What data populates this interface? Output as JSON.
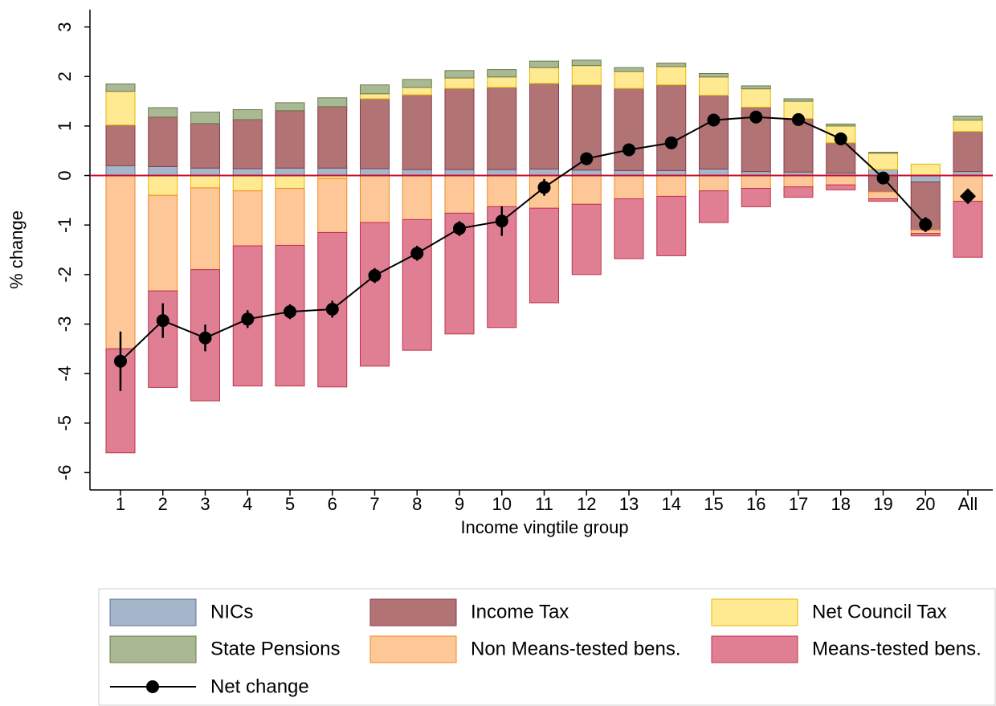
{
  "chart_data": {
    "type": "stacked-bar-line",
    "y_label": "% change",
    "x_label": "Income vingtile group",
    "categories": [
      "1",
      "2",
      "3",
      "4",
      "5",
      "6",
      "7",
      "8",
      "9",
      "10",
      "11",
      "12",
      "13",
      "14",
      "15",
      "16",
      "17",
      "18",
      "19",
      "20",
      "All"
    ],
    "ylim": [
      -6.35,
      3.35
    ],
    "yticks": [
      -6,
      -5,
      -4,
      -3,
      -2,
      -1,
      0,
      1,
      2,
      3
    ],
    "grid": false,
    "reference_line": {
      "value": 0,
      "color": "#c8102e"
    },
    "series": [
      {
        "name": "NICs",
        "kind": "bar",
        "color": "#a4b6c9",
        "edgecolor": "#5b7391",
        "values": [
          0.2,
          0.18,
          0.15,
          0.14,
          0.15,
          0.15,
          0.14,
          0.12,
          0.12,
          0.12,
          0.13,
          0.11,
          0.1,
          0.1,
          0.13,
          0.08,
          0.07,
          0.05,
          0.12,
          -0.13,
          0.08
        ]
      },
      {
        "name": "Income Tax",
        "kind": "bar",
        "color": "#b27374",
        "edgecolor": "#8a3a4a",
        "values": [
          0.82,
          1.0,
          0.9,
          0.99,
          1.16,
          1.24,
          1.41,
          1.51,
          1.64,
          1.66,
          1.73,
          1.72,
          1.66,
          1.73,
          1.49,
          1.3,
          1.08,
          0.61,
          -0.33,
          -0.97,
          0.81
        ]
      },
      {
        "name": "Net Council Tax",
        "kind": "bar",
        "color": "#ffe991",
        "edgecolor": "#e6b800",
        "values": [
          0.68,
          -0.4,
          -0.25,
          -0.31,
          -0.26,
          -0.06,
          0.1,
          0.15,
          0.21,
          0.21,
          0.32,
          0.39,
          0.34,
          0.37,
          0.37,
          0.37,
          0.35,
          0.34,
          0.33,
          0.23,
          0.23
        ]
      },
      {
        "name": "State Pensions",
        "kind": "bar",
        "color": "#a9b994",
        "edgecolor": "#6a7a4a",
        "values": [
          0.15,
          0.19,
          0.23,
          0.2,
          0.16,
          0.18,
          0.18,
          0.16,
          0.15,
          0.15,
          0.13,
          0.11,
          0.08,
          0.07,
          0.07,
          0.06,
          0.05,
          0.04,
          0.02,
          0.0,
          0.08
        ]
      },
      {
        "name": "Non Means-tested bens.",
        "kind": "bar",
        "color": "#fdc797",
        "edgecolor": "#f08a20",
        "values": [
          -3.5,
          -1.93,
          -1.65,
          -1.11,
          -1.15,
          -1.09,
          -0.95,
          -0.89,
          -0.76,
          -0.63,
          -0.66,
          -0.58,
          -0.47,
          -0.42,
          -0.31,
          -0.26,
          -0.23,
          -0.19,
          -0.14,
          -0.07,
          -0.52
        ]
      },
      {
        "name": "Means-tested bens.",
        "kind": "bar",
        "color": "#e07f94",
        "edgecolor": "#c0304a",
        "values": [
          -2.1,
          -1.95,
          -2.65,
          -2.83,
          -2.84,
          -3.12,
          -2.9,
          -2.64,
          -2.44,
          -2.44,
          -1.91,
          -1.42,
          -1.21,
          -1.2,
          -0.64,
          -0.37,
          -0.21,
          -0.1,
          -0.05,
          -0.05,
          -1.13
        ]
      },
      {
        "name": "Net change",
        "kind": "line",
        "color": "#000000",
        "values": [
          -3.75,
          -2.93,
          -3.28,
          -2.9,
          -2.75,
          -2.7,
          -2.02,
          -1.57,
          -1.07,
          -0.92,
          -0.24,
          0.34,
          0.52,
          0.66,
          1.12,
          1.18,
          1.13,
          0.74,
          -0.05,
          -0.99,
          -0.42
        ],
        "errors": [
          0.6,
          0.35,
          0.27,
          0.18,
          0.15,
          0.17,
          0.15,
          0.15,
          0.15,
          0.3,
          0.17,
          0.12,
          0.06,
          0.05,
          0.05,
          0.05,
          0.05,
          0.08,
          0.08,
          0.15,
          null
        ]
      }
    ]
  }
}
